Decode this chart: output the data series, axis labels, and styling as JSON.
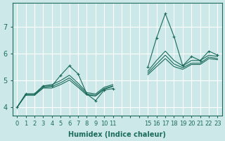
{
  "bg_color": "#cce8e8",
  "grid_color": "#ffffff",
  "line_color": "#1a6b5a",
  "xlabel": "Humidex (Indice chaleur)",
  "xlim": [
    -0.5,
    23.5
  ],
  "ylim": [
    3.7,
    7.9
  ],
  "yticks": [
    4,
    5,
    6,
    7
  ],
  "xtick_labels": [
    "0",
    "1",
    "2",
    "3",
    "4",
    "5",
    "6",
    "7",
    "8",
    "9",
    "10",
    "11",
    "",
    "",
    "",
    "15",
    "16",
    "17",
    "18",
    "19",
    "20",
    "21",
    "22",
    "23"
  ],
  "series_main": [
    4.0,
    4.5,
    4.5,
    4.8,
    4.8,
    5.2,
    5.55,
    5.25,
    4.5,
    4.25,
    4.65,
    4.7,
    null,
    null,
    null,
    5.5,
    6.6,
    7.5,
    6.65,
    5.55,
    5.9,
    5.75,
    6.1,
    5.95
  ],
  "series_trend1": [
    4.0,
    4.5,
    4.5,
    4.8,
    4.85,
    5.0,
    5.2,
    4.9,
    4.55,
    4.5,
    4.75,
    4.85,
    null,
    null,
    null,
    5.35,
    5.75,
    6.1,
    5.75,
    5.55,
    5.75,
    5.75,
    5.95,
    5.9
  ],
  "series_trend2": [
    4.0,
    4.48,
    4.48,
    4.75,
    4.78,
    4.92,
    5.1,
    4.82,
    4.5,
    4.45,
    4.7,
    4.8,
    null,
    null,
    null,
    5.28,
    5.62,
    5.95,
    5.62,
    5.48,
    5.65,
    5.65,
    5.88,
    5.82
  ],
  "series_trend3": [
    4.0,
    4.45,
    4.45,
    4.72,
    4.72,
    4.85,
    5.02,
    4.75,
    4.46,
    4.42,
    4.68,
    4.78,
    null,
    null,
    null,
    5.22,
    5.52,
    5.82,
    5.52,
    5.42,
    5.6,
    5.6,
    5.82,
    5.78
  ]
}
